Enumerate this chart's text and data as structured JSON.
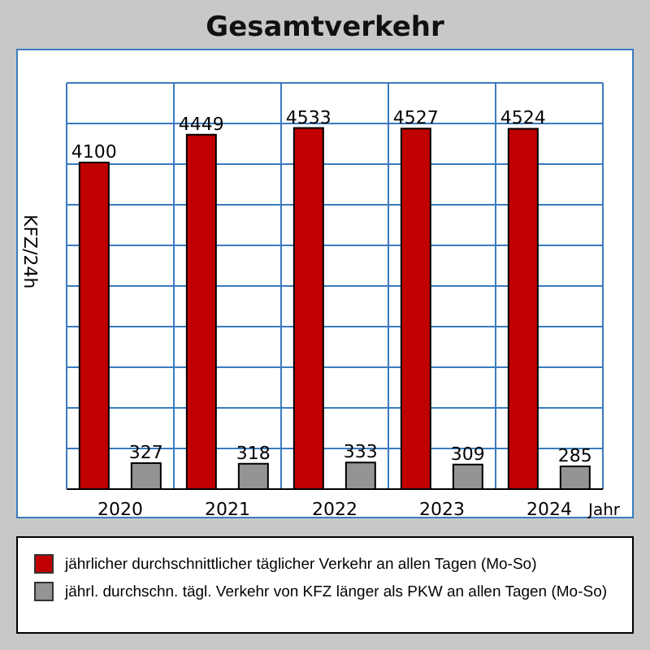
{
  "chart_data": {
    "type": "bar",
    "title": "Gesamtverkehr",
    "xlabel": "Jahr",
    "ylabel": "KFZ/24h",
    "categories": [
      "2020",
      "2021",
      "2022",
      "2023",
      "2024"
    ],
    "series": [
      {
        "name": "jährlicher durchschnittlicher täglicher Verkehr an allen Tagen (Mo-So)",
        "color": "#c00000",
        "values": [
          4100,
          4449,
          4533,
          4527,
          4524
        ]
      },
      {
        "name": "jährl. durchschn. tägl. Verkehr von KFZ länger als PKW an allen Tagen (Mo-So)",
        "color": "#949494",
        "values": [
          327,
          318,
          333,
          309,
          285
        ]
      }
    ],
    "ylim": [
      0,
      5100
    ],
    "yticks": [
      {
        "value": 0,
        "label": null
      },
      {
        "value": 510,
        "label": null
      },
      {
        "value": 1020,
        "label": null
      },
      {
        "value": 1530,
        "label": null
      },
      {
        "value": 2040,
        "label": null
      },
      {
        "value": 2550,
        "label": null
      },
      {
        "value": 3060,
        "label": null
      },
      {
        "value": 3570,
        "label": null
      },
      {
        "value": 4080,
        "label": null
      },
      {
        "value": 4590,
        "label": null
      },
      {
        "value": 5100,
        "label": null
      }
    ],
    "data_labels": true,
    "grid": true,
    "legend": "bottom",
    "tick_labels": "x"
  }
}
